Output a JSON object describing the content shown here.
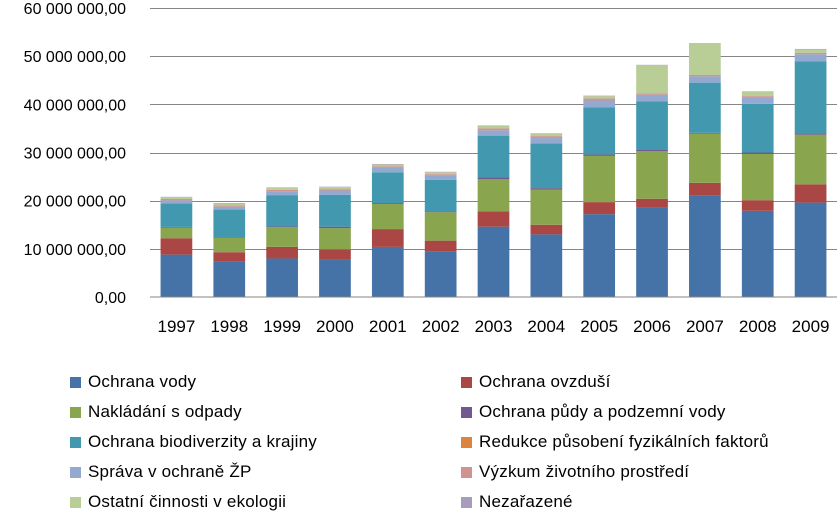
{
  "chart_data": {
    "type": "bar",
    "stacked": true,
    "title": "",
    "xlabel": "",
    "ylabel": "",
    "ylim": [
      0,
      60000000
    ],
    "ytick_values": [
      0,
      10000000,
      20000000,
      30000000,
      40000000,
      50000000,
      60000000
    ],
    "ytick_labels": [
      "0,00",
      "10 000 000,00",
      "20 000 000,00",
      "30 000 000,00",
      "40 000 000,00",
      "50 000 000,00",
      "60 000 000,00"
    ],
    "grid": true,
    "legend_position": "bottom",
    "categories": [
      "1997",
      "1998",
      "1999",
      "2000",
      "2001",
      "2002",
      "2003",
      "2004",
      "2005",
      "2006",
      "2007",
      "2008",
      "2009"
    ],
    "series": [
      {
        "name": "Ochrana vody",
        "color": "#4572A7",
        "values": [
          8800000,
          7300000,
          8000000,
          7800000,
          10400000,
          9400000,
          14600000,
          13000000,
          17200000,
          18600000,
          21100000,
          17900000,
          19600000
        ]
      },
      {
        "name": "Ochrana ovzduší",
        "color": "#AA4643",
        "values": [
          3400000,
          2000000,
          2400000,
          2100000,
          3700000,
          2300000,
          3200000,
          2000000,
          2500000,
          1800000,
          2600000,
          2200000,
          3800000
        ]
      },
      {
        "name": "Nakládání s odpady",
        "color": "#89A54E",
        "values": [
          2200000,
          3000000,
          4100000,
          4400000,
          5200000,
          5900000,
          6700000,
          7300000,
          9600000,
          9900000,
          10200000,
          9600000,
          10300000
        ]
      },
      {
        "name": "Ochrana půdy a podzemní vody",
        "color": "#71588F",
        "values": [
          150000,
          150000,
          150000,
          300000,
          200000,
          200000,
          300000,
          300000,
          300000,
          300000,
          200000,
          300000,
          300000
        ]
      },
      {
        "name": "Ochrana biodiverzity a krajiny",
        "color": "#4198AF",
        "values": [
          4900000,
          5700000,
          6500000,
          6600000,
          6400000,
          6500000,
          8700000,
          9300000,
          9800000,
          10000000,
          10400000,
          10100000,
          14900000
        ]
      },
      {
        "name": "Redukce působení fyzikálních faktorů",
        "color": "#DB843D",
        "values": [
          0,
          0,
          0,
          0,
          0,
          0,
          0,
          0,
          0,
          0,
          0,
          0,
          0
        ]
      },
      {
        "name": "Správa v ochraně ŽP",
        "color": "#93A9CF",
        "values": [
          600000,
          600000,
          800000,
          900000,
          900000,
          900000,
          1100000,
          1100000,
          1400000,
          1400000,
          1300000,
          1300000,
          1500000
        ]
      },
      {
        "name": "Výzkum životního prostředí",
        "color": "#D19392",
        "values": [
          300000,
          300000,
          300000,
          300000,
          300000,
          300000,
          400000,
          400000,
          400000,
          300000,
          300000,
          300000,
          300000
        ]
      },
      {
        "name": "Ostatní činnosti v ekologii",
        "color": "#B9CD96",
        "values": [
          350000,
          350000,
          400000,
          400000,
          400000,
          400000,
          500000,
          500000,
          500000,
          5800000,
          6500000,
          900000,
          700000
        ]
      },
      {
        "name": "Nezařazené",
        "color": "#A99BBD",
        "values": [
          100000,
          100000,
          100000,
          100000,
          100000,
          100000,
          100000,
          100000,
          100000,
          100000,
          100000,
          100000,
          100000
        ]
      }
    ]
  }
}
